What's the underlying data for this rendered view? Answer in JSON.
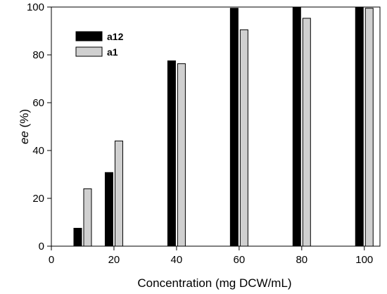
{
  "chart_data": {
    "type": "bar",
    "x": [
      10,
      20,
      40,
      60,
      80,
      100
    ],
    "xlim": [
      0,
      105
    ],
    "ylim": [
      0,
      100
    ],
    "xticks": [
      0,
      20,
      40,
      60,
      80,
      100
    ],
    "yticks": [
      0,
      20,
      40,
      60,
      80,
      100
    ],
    "xlabel": "Concentration (mg DCW/mL)",
    "ylabel_italic": "ee",
    "ylabel_rest": " (%)",
    "grid": false,
    "legend_position": "top-left",
    "series": [
      {
        "name": "a12",
        "color": "#000000",
        "values": [
          7.5,
          30.8,
          77.5,
          99.5,
          100,
          100
        ]
      },
      {
        "name": "a1",
        "color": "#d0d0d0",
        "values": [
          24,
          44,
          76.3,
          90.5,
          95.3,
          99.5
        ]
      }
    ]
  }
}
